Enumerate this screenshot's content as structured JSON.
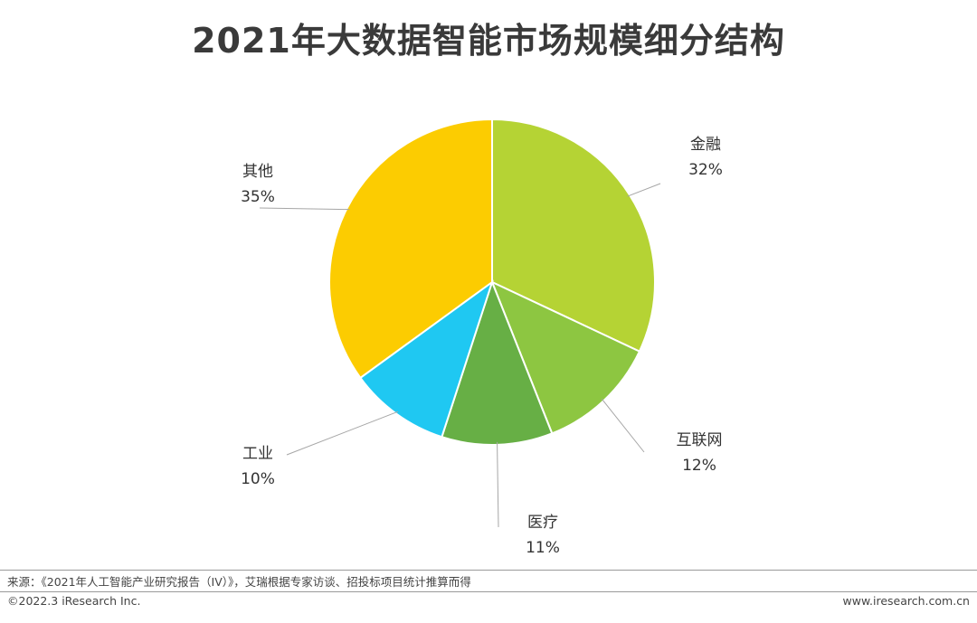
{
  "chart_data": {
    "type": "pie",
    "title": "2021年大数据智能市场规模细分结构",
    "slices": [
      {
        "label": "金融",
        "value": 32,
        "value_label": "32%",
        "color": "#b5d334"
      },
      {
        "label": "互联网",
        "value": 12,
        "value_label": "12%",
        "color": "#8dc641"
      },
      {
        "label": "医疗",
        "value": 11,
        "value_label": "11%",
        "color": "#67af45"
      },
      {
        "label": "工业",
        "value": 10,
        "value_label": "10%",
        "color": "#1fc8f2"
      },
      {
        "label": "其他",
        "value": 35,
        "value_label": "35%",
        "color": "#fccc01"
      }
    ],
    "start": "12 o'clock",
    "direction": "clockwise",
    "legend": "none"
  },
  "footer": {
    "source": "来源：《2021年人工智能产业研究报告（IV）》，艾瑞根据专家访谈、招投标项目统计推算而得",
    "copyright": "©2022.3 iResearch Inc.",
    "website": "www.iresearch.com.cn"
  }
}
